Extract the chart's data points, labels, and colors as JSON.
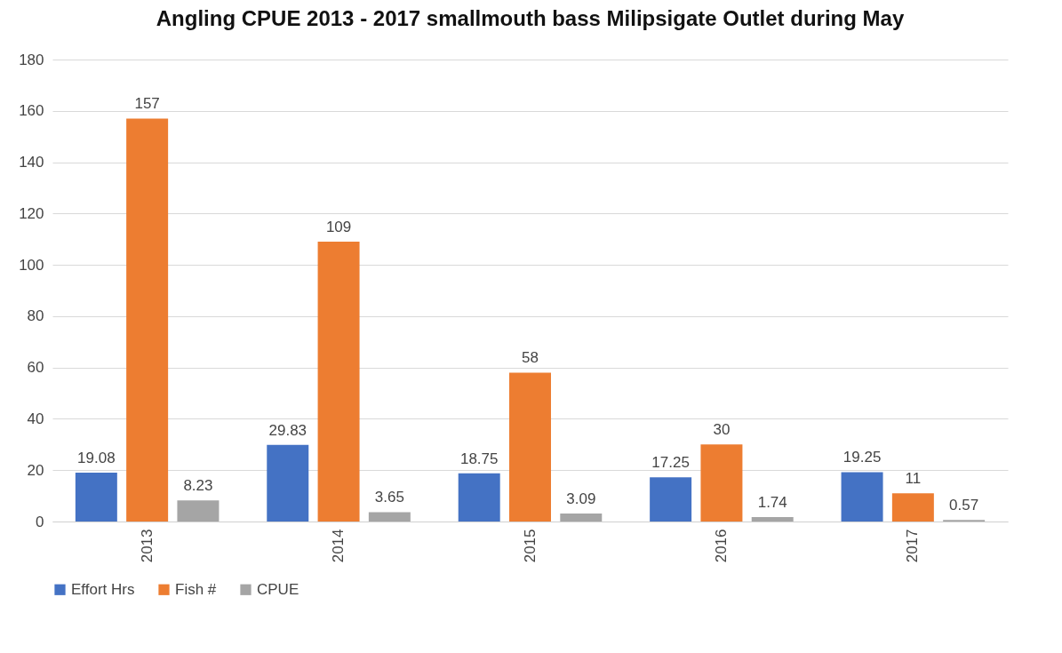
{
  "chart_data": {
    "type": "bar",
    "title": "Angling CPUE 2013 - 2017 smallmouth bass Milipsigate Outlet during May",
    "categories": [
      "2013",
      "2014",
      "2015",
      "2016",
      "2017"
    ],
    "series": [
      {
        "name": "Effort Hrs",
        "color": "#4472c4",
        "values": [
          19.08,
          29.83,
          18.75,
          17.25,
          19.25
        ]
      },
      {
        "name": "Fish #",
        "color": "#ed7d31",
        "values": [
          157,
          109,
          58,
          30,
          11
        ]
      },
      {
        "name": "CPUE",
        "color": "#a5a5a5",
        "values": [
          8.23,
          3.65,
          3.09,
          1.74,
          0.57
        ]
      }
    ],
    "ylim": [
      0,
      180
    ],
    "yticks": [
      0,
      20,
      40,
      60,
      80,
      100,
      120,
      140,
      160,
      180
    ],
    "grid": "y",
    "legend": "bottom",
    "data_labels": true
  }
}
